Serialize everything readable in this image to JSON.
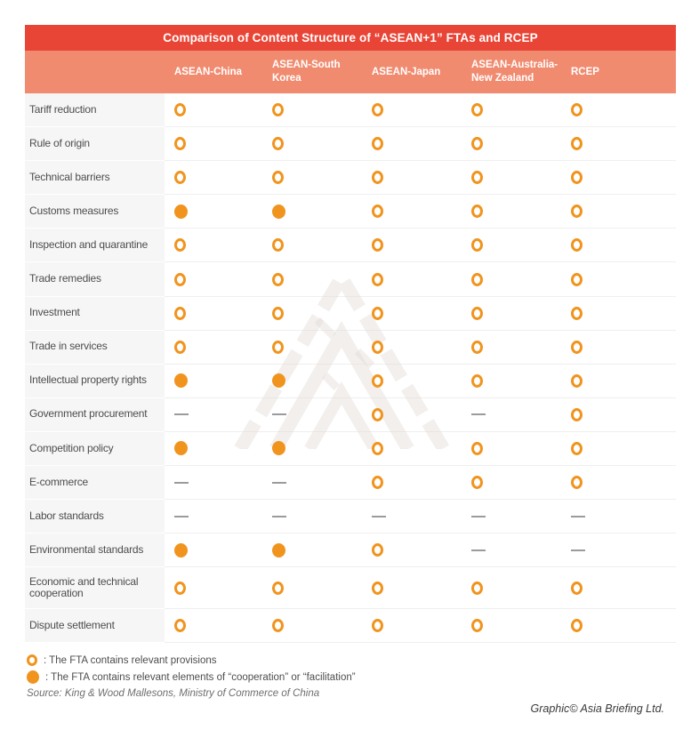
{
  "colors": {
    "header_red": "#E94536",
    "header_salmon": "#F08B70",
    "circle_orange": "#F0941E",
    "dash_gray": "#9B9B9B",
    "label_text": "#4D4D4D",
    "label_col_bg": "#F6F6F7",
    "separator": "#EFEFEF"
  },
  "chart_data": {
    "type": "table",
    "title": "Comparison of Content Structure of “ASEAN+1” FTAs and RCEP",
    "columns": [
      "ASEAN-China",
      "ASEAN-South\nKorea",
      "ASEAN-Japan",
      "ASEAN-Australia-\nNew Zealand",
      "RCEP"
    ],
    "symbol_key": {
      "open": "open orange circle",
      "filled": "filled orange circle",
      "dash": "— (em dash, no provision shown)"
    },
    "legend": {
      "open": ": The FTA contains relevant provisions",
      "filled": ": The FTA contains relevant elements of “cooperation” or “facilitation”"
    },
    "rows": [
      {
        "label": "Tariff reduction",
        "values": [
          "open",
          "open",
          "open",
          "open",
          "open"
        ]
      },
      {
        "label": "Rule of origin",
        "values": [
          "open",
          "open",
          "open",
          "open",
          "open"
        ]
      },
      {
        "label": "Technical barriers",
        "values": [
          "open",
          "open",
          "open",
          "open",
          "open"
        ]
      },
      {
        "label": "Customs measures",
        "values": [
          "filled",
          "filled",
          "open",
          "open",
          "open"
        ]
      },
      {
        "label": "Inspection and quarantine",
        "values": [
          "open",
          "open",
          "open",
          "open",
          "open"
        ]
      },
      {
        "label": "Trade remedies",
        "values": [
          "open",
          "open",
          "open",
          "open",
          "open"
        ]
      },
      {
        "label": "Investment",
        "values": [
          "open",
          "open",
          "open",
          "open",
          "open"
        ]
      },
      {
        "label": "Trade in services",
        "values": [
          "open",
          "open",
          "open",
          "open",
          "open"
        ]
      },
      {
        "label": "Intellectual property rights",
        "values": [
          "filled",
          "filled",
          "open",
          "open",
          "open"
        ]
      },
      {
        "label": "Government procurement",
        "values": [
          "dash",
          "dash",
          "open",
          "dash",
          "open"
        ]
      },
      {
        "label": "Competition policy",
        "values": [
          "filled",
          "filled",
          "open",
          "open",
          "open"
        ]
      },
      {
        "label": "E-commerce",
        "values": [
          "dash",
          "dash",
          "open",
          "open",
          "open"
        ]
      },
      {
        "label": "Labor standards",
        "values": [
          "dash",
          "dash",
          "dash",
          "dash",
          "dash"
        ]
      },
      {
        "label": "Environmental standards",
        "values": [
          "filled",
          "filled",
          "open",
          "dash",
          "dash"
        ]
      },
      {
        "label": "Economic and technical cooperation",
        "values": [
          "open",
          "open",
          "open",
          "open",
          "open"
        ],
        "tall": true
      },
      {
        "label": "Dispute settlement",
        "values": [
          "open",
          "open",
          "open",
          "open",
          "open"
        ]
      }
    ]
  },
  "source": "Source: King & Wood Mallesons, Ministry of Commerce of China",
  "credit": "Graphic© Asia Briefing Ltd."
}
